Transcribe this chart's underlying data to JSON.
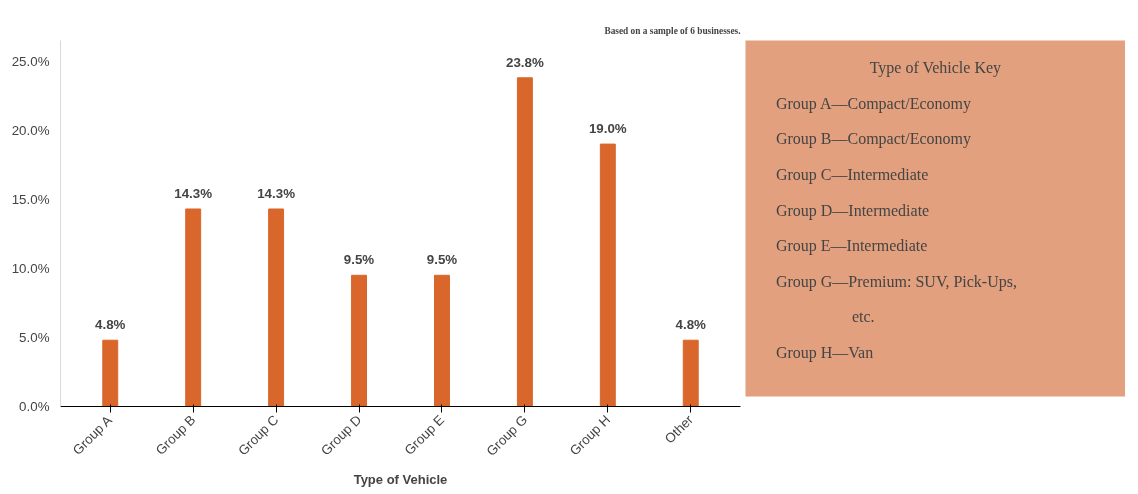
{
  "chart_data": {
    "type": "bar",
    "xlabel": "Type of Vehicle",
    "categories": [
      "Group A",
      "Group B",
      "Group C",
      "Group D",
      "Group E",
      "Group G",
      "Group H",
      "Other"
    ],
    "values": [
      4.8,
      14.3,
      14.3,
      9.5,
      9.5,
      23.8,
      19.0,
      4.8
    ],
    "value_labels": [
      "4.8%",
      "14.3%",
      "14.3%",
      "9.5%",
      "9.5%",
      "23.8%",
      "19.0%",
      "4.8%"
    ],
    "color": "#d9662b",
    "ylim": [
      0,
      26.5
    ],
    "yticks": [
      {
        "value": 0,
        "label": "0.0%"
      },
      {
        "value": 5,
        "label": "5.0%"
      },
      {
        "value": 10,
        "label": "10.0%"
      },
      {
        "value": 15,
        "label": "15.0%"
      },
      {
        "value": 20,
        "label": "20.0%"
      },
      {
        "value": 25,
        "label": "25.0%"
      }
    ],
    "grid": false,
    "annotations": [
      "Based on a sample of 6 businesses.",
      "Type of Vehicle Key",
      "Group A—Compact/Economy",
      "Group B—Compact/Economy",
      "Group C—Intermediate",
      "Group D—Intermediate",
      "Group E—Intermediate",
      "Group G—Premium: SUV, Pick-Ups, etc.",
      "Group H—Van"
    ]
  }
}
